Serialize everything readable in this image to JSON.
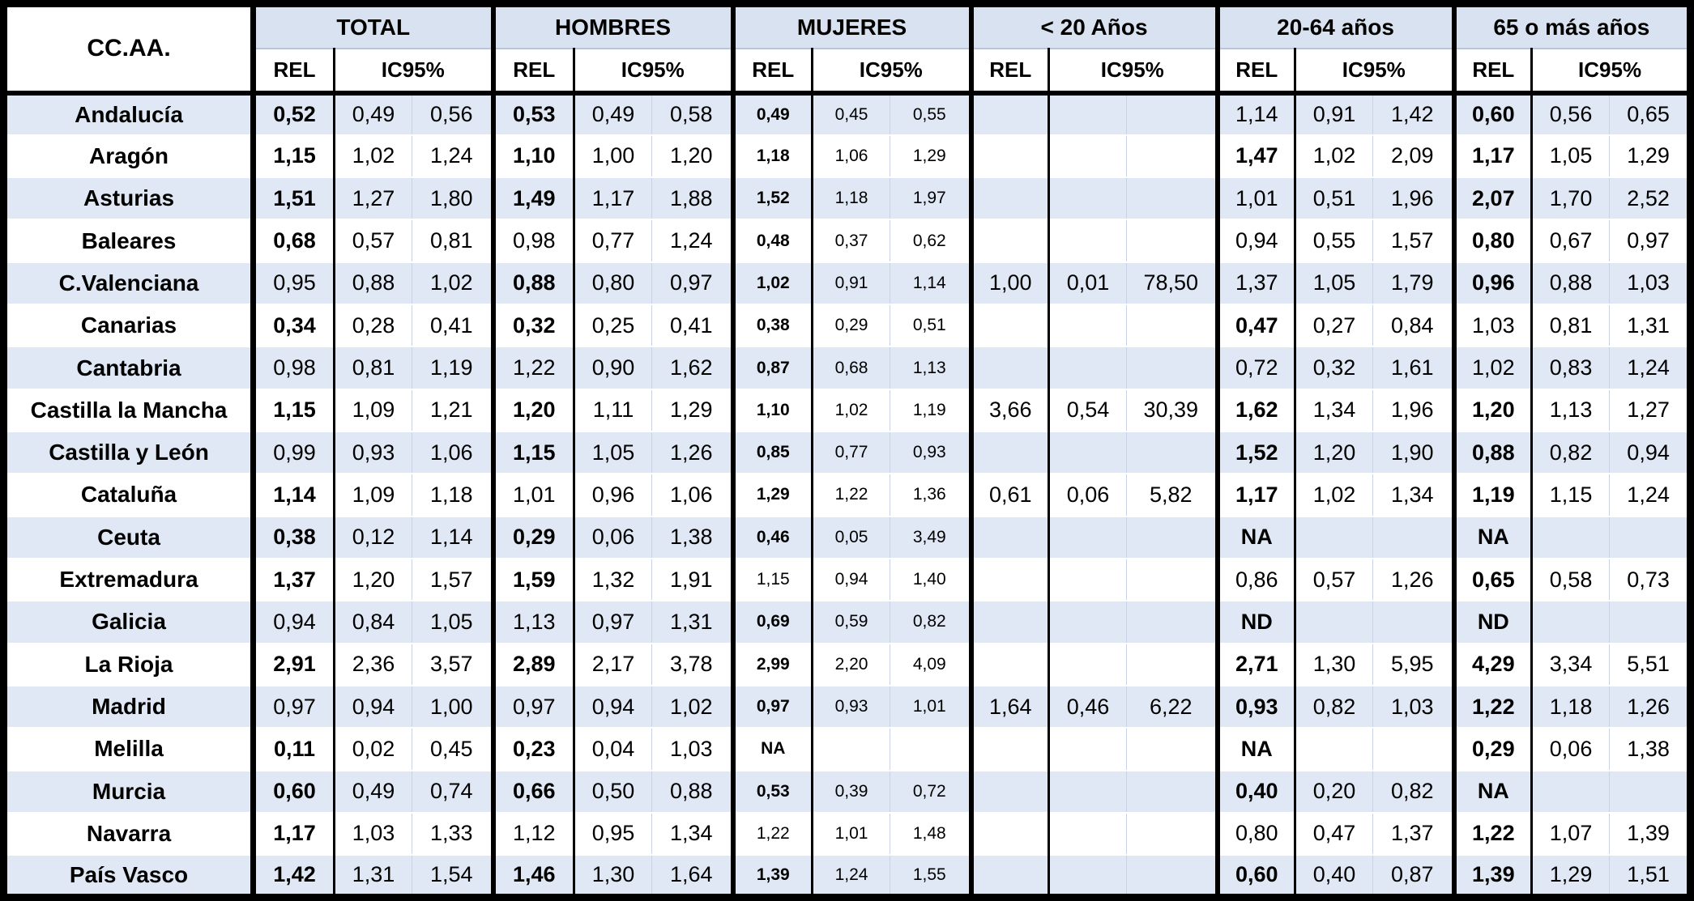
{
  "table": {
    "corner_label": "CC.AA.",
    "sub": {
      "rel": "REL",
      "ic": "IC95%"
    },
    "groups": [
      {
        "label": "TOTAL"
      },
      {
        "label": "HOMBRES"
      },
      {
        "label": "MUJERES"
      },
      {
        "label": "< 20 Años"
      },
      {
        "label": "20-64 años"
      },
      {
        "label": "65 o más años"
      }
    ],
    "colors": {
      "stripe": "#dfe8f4",
      "header_fill": "#d9e2f0",
      "border": "#000000",
      "light_divider": "#c8d2e2"
    },
    "rows": [
      {
        "region": "Andalucía",
        "alt": true,
        "groups": [
          {
            "rel": "0,52",
            "b": true,
            "lo": "0,49",
            "hi": "0,56"
          },
          {
            "rel": "0,53",
            "b": true,
            "lo": "0,49",
            "hi": "0,58"
          },
          {
            "rel": "0,49",
            "b": true,
            "lo": "0,45",
            "hi": "0,55"
          },
          {
            "rel": "",
            "b": false,
            "lo": "",
            "hi": ""
          },
          {
            "rel": "1,14",
            "b": false,
            "lo": "0,91",
            "hi": "1,42"
          },
          {
            "rel": "0,60",
            "b": true,
            "lo": "0,56",
            "hi": "0,65"
          }
        ]
      },
      {
        "region": "Aragón",
        "alt": false,
        "groups": [
          {
            "rel": "1,15",
            "b": true,
            "lo": "1,02",
            "hi": "1,24"
          },
          {
            "rel": "1,10",
            "b": true,
            "lo": "1,00",
            "hi": "1,20"
          },
          {
            "rel": "1,18",
            "b": true,
            "lo": "1,06",
            "hi": "1,29"
          },
          {
            "rel": "",
            "b": false,
            "lo": "",
            "hi": ""
          },
          {
            "rel": "1,47",
            "b": true,
            "lo": "1,02",
            "hi": "2,09"
          },
          {
            "rel": "1,17",
            "b": true,
            "lo": "1,05",
            "hi": "1,29"
          }
        ]
      },
      {
        "region": "Asturias",
        "alt": true,
        "groups": [
          {
            "rel": "1,51",
            "b": true,
            "lo": "1,27",
            "hi": "1,80"
          },
          {
            "rel": "1,49",
            "b": true,
            "lo": "1,17",
            "hi": "1,88"
          },
          {
            "rel": "1,52",
            "b": true,
            "lo": "1,18",
            "hi": "1,97"
          },
          {
            "rel": "",
            "b": false,
            "lo": "",
            "hi": ""
          },
          {
            "rel": "1,01",
            "b": false,
            "lo": "0,51",
            "hi": "1,96"
          },
          {
            "rel": "2,07",
            "b": true,
            "lo": "1,70",
            "hi": "2,52"
          }
        ]
      },
      {
        "region": "Baleares",
        "alt": false,
        "groups": [
          {
            "rel": "0,68",
            "b": true,
            "lo": "0,57",
            "hi": "0,81"
          },
          {
            "rel": "0,98",
            "b": false,
            "lo": "0,77",
            "hi": "1,24"
          },
          {
            "rel": "0,48",
            "b": true,
            "lo": "0,37",
            "hi": "0,62"
          },
          {
            "rel": "",
            "b": false,
            "lo": "",
            "hi": ""
          },
          {
            "rel": "0,94",
            "b": false,
            "lo": "0,55",
            "hi": "1,57"
          },
          {
            "rel": "0,80",
            "b": true,
            "lo": "0,67",
            "hi": "0,97"
          }
        ]
      },
      {
        "region": "C.Valenciana",
        "alt": true,
        "groups": [
          {
            "rel": "0,95",
            "b": false,
            "lo": "0,88",
            "hi": "1,02"
          },
          {
            "rel": "0,88",
            "b": true,
            "lo": "0,80",
            "hi": "0,97"
          },
          {
            "rel": "1,02",
            "b": true,
            "lo": "0,91",
            "hi": "1,14"
          },
          {
            "rel": "1,00",
            "b": false,
            "lo": "0,01",
            "hi": "78,50"
          },
          {
            "rel": "1,37",
            "b": false,
            "lo": "1,05",
            "hi": "1,79"
          },
          {
            "rel": "0,96",
            "b": true,
            "lo": "0,88",
            "hi": "1,03"
          }
        ]
      },
      {
        "region": "Canarias",
        "alt": false,
        "groups": [
          {
            "rel": "0,34",
            "b": true,
            "lo": "0,28",
            "hi": "0,41"
          },
          {
            "rel": "0,32",
            "b": true,
            "lo": "0,25",
            "hi": "0,41"
          },
          {
            "rel": "0,38",
            "b": true,
            "lo": "0,29",
            "hi": "0,51"
          },
          {
            "rel": "",
            "b": false,
            "lo": "",
            "hi": ""
          },
          {
            "rel": "0,47",
            "b": true,
            "lo": "0,27",
            "hi": "0,84"
          },
          {
            "rel": "1,03",
            "b": false,
            "lo": "0,81",
            "hi": "1,31"
          }
        ]
      },
      {
        "region": "Cantabria",
        "alt": true,
        "groups": [
          {
            "rel": "0,98",
            "b": false,
            "lo": "0,81",
            "hi": "1,19"
          },
          {
            "rel": "1,22",
            "b": false,
            "lo": "0,90",
            "hi": "1,62"
          },
          {
            "rel": "0,87",
            "b": true,
            "lo": "0,68",
            "hi": "1,13"
          },
          {
            "rel": "",
            "b": false,
            "lo": "",
            "hi": ""
          },
          {
            "rel": "0,72",
            "b": false,
            "lo": "0,32",
            "hi": "1,61"
          },
          {
            "rel": "1,02",
            "b": false,
            "lo": "0,83",
            "hi": "1,24"
          }
        ]
      },
      {
        "region": "Castilla la Mancha",
        "alt": false,
        "groups": [
          {
            "rel": "1,15",
            "b": true,
            "lo": "1,09",
            "hi": "1,21"
          },
          {
            "rel": "1,20",
            "b": true,
            "lo": "1,11",
            "hi": "1,29"
          },
          {
            "rel": "1,10",
            "b": true,
            "lo": "1,02",
            "hi": "1,19"
          },
          {
            "rel": "3,66",
            "b": false,
            "lo": "0,54",
            "hi": "30,39"
          },
          {
            "rel": "1,62",
            "b": true,
            "lo": "1,34",
            "hi": "1,96"
          },
          {
            "rel": "1,20",
            "b": true,
            "lo": "1,13",
            "hi": "1,27"
          }
        ]
      },
      {
        "region": "Castilla y  León",
        "alt": true,
        "groups": [
          {
            "rel": "0,99",
            "b": false,
            "lo": "0,93",
            "hi": "1,06"
          },
          {
            "rel": "1,15",
            "b": true,
            "lo": "1,05",
            "hi": "1,26"
          },
          {
            "rel": "0,85",
            "b": true,
            "lo": "0,77",
            "hi": "0,93"
          },
          {
            "rel": "",
            "b": false,
            "lo": "",
            "hi": ""
          },
          {
            "rel": "1,52",
            "b": true,
            "lo": "1,20",
            "hi": "1,90"
          },
          {
            "rel": "0,88",
            "b": true,
            "lo": "0,82",
            "hi": "0,94"
          }
        ]
      },
      {
        "region": "Cataluña",
        "alt": false,
        "groups": [
          {
            "rel": "1,14",
            "b": true,
            "lo": "1,09",
            "hi": "1,18"
          },
          {
            "rel": "1,01",
            "b": false,
            "lo": "0,96",
            "hi": "1,06"
          },
          {
            "rel": "1,29",
            "b": true,
            "lo": "1,22",
            "hi": "1,36"
          },
          {
            "rel": "0,61",
            "b": false,
            "lo": "0,06",
            "hi": "5,82"
          },
          {
            "rel": "1,17",
            "b": true,
            "lo": "1,02",
            "hi": "1,34"
          },
          {
            "rel": "1,19",
            "b": true,
            "lo": "1,15",
            "hi": "1,24"
          }
        ]
      },
      {
        "region": "Ceuta",
        "alt": true,
        "groups": [
          {
            "rel": "0,38",
            "b": true,
            "lo": "0,12",
            "hi": "1,14"
          },
          {
            "rel": "0,29",
            "b": true,
            "lo": "0,06",
            "hi": "1,38"
          },
          {
            "rel": "0,46",
            "b": true,
            "lo": "0,05",
            "hi": "3,49"
          },
          {
            "rel": "",
            "b": false,
            "lo": "",
            "hi": ""
          },
          {
            "rel": "NA",
            "b": true,
            "lo": "",
            "hi": ""
          },
          {
            "rel": "NA",
            "b": true,
            "lo": "",
            "hi": ""
          }
        ]
      },
      {
        "region": "Extremadura",
        "alt": false,
        "groups": [
          {
            "rel": "1,37",
            "b": true,
            "lo": "1,20",
            "hi": "1,57"
          },
          {
            "rel": "1,59",
            "b": true,
            "lo": "1,32",
            "hi": "1,91"
          },
          {
            "rel": "1,15",
            "b": false,
            "lo": "0,94",
            "hi": "1,40"
          },
          {
            "rel": "",
            "b": false,
            "lo": "",
            "hi": ""
          },
          {
            "rel": "0,86",
            "b": false,
            "lo": "0,57",
            "hi": "1,26"
          },
          {
            "rel": "0,65",
            "b": true,
            "lo": "0,58",
            "hi": "0,73"
          }
        ]
      },
      {
        "region": "Galicia",
        "alt": true,
        "groups": [
          {
            "rel": "0,94",
            "b": false,
            "lo": "0,84",
            "hi": "1,05"
          },
          {
            "rel": "1,13",
            "b": false,
            "lo": "0,97",
            "hi": "1,31"
          },
          {
            "rel": "0,69",
            "b": true,
            "lo": "0,59",
            "hi": "0,82"
          },
          {
            "rel": "",
            "b": false,
            "lo": "",
            "hi": ""
          },
          {
            "rel": "ND",
            "b": true,
            "lo": "",
            "hi": ""
          },
          {
            "rel": "ND",
            "b": true,
            "lo": "",
            "hi": ""
          }
        ]
      },
      {
        "region": "La Rioja",
        "alt": false,
        "groups": [
          {
            "rel": "2,91",
            "b": true,
            "lo": "2,36",
            "hi": "3,57"
          },
          {
            "rel": "2,89",
            "b": true,
            "lo": "2,17",
            "hi": "3,78"
          },
          {
            "rel": "2,99",
            "b": true,
            "lo": "2,20",
            "hi": "4,09"
          },
          {
            "rel": "",
            "b": false,
            "lo": "",
            "hi": ""
          },
          {
            "rel": "2,71",
            "b": true,
            "lo": "1,30",
            "hi": "5,95"
          },
          {
            "rel": "4,29",
            "b": true,
            "lo": "3,34",
            "hi": "5,51"
          }
        ]
      },
      {
        "region": "Madrid",
        "alt": true,
        "groups": [
          {
            "rel": "0,97",
            "b": false,
            "lo": "0,94",
            "hi": "1,00"
          },
          {
            "rel": "0,97",
            "b": false,
            "lo": "0,94",
            "hi": "1,02"
          },
          {
            "rel": "0,97",
            "b": true,
            "lo": "0,93",
            "hi": "1,01"
          },
          {
            "rel": "1,64",
            "b": false,
            "lo": "0,46",
            "hi": "6,22"
          },
          {
            "rel": "0,93",
            "b": true,
            "lo": "0,82",
            "hi": "1,03"
          },
          {
            "rel": "1,22",
            "b": true,
            "lo": "1,18",
            "hi": "1,26"
          }
        ]
      },
      {
        "region": "Melilla",
        "alt": false,
        "groups": [
          {
            "rel": "0,11",
            "b": true,
            "lo": "0,02",
            "hi": "0,45"
          },
          {
            "rel": "0,23",
            "b": true,
            "lo": "0,04",
            "hi": "1,03"
          },
          {
            "rel": "NA",
            "b": true,
            "lo": "",
            "hi": ""
          },
          {
            "rel": "",
            "b": false,
            "lo": "",
            "hi": ""
          },
          {
            "rel": "NA",
            "b": true,
            "lo": "",
            "hi": ""
          },
          {
            "rel": "0,29",
            "b": true,
            "lo": "0,06",
            "hi": "1,38"
          }
        ]
      },
      {
        "region": "Murcia",
        "alt": true,
        "groups": [
          {
            "rel": "0,60",
            "b": true,
            "lo": "0,49",
            "hi": "0,74"
          },
          {
            "rel": "0,66",
            "b": true,
            "lo": "0,50",
            "hi": "0,88"
          },
          {
            "rel": "0,53",
            "b": true,
            "lo": "0,39",
            "hi": "0,72"
          },
          {
            "rel": "",
            "b": false,
            "lo": "",
            "hi": ""
          },
          {
            "rel": "0,40",
            "b": true,
            "lo": "0,20",
            "hi": "0,82"
          },
          {
            "rel": "NA",
            "b": true,
            "lo": "",
            "hi": ""
          }
        ]
      },
      {
        "region": "Navarra",
        "alt": false,
        "groups": [
          {
            "rel": "1,17",
            "b": true,
            "lo": "1,03",
            "hi": "1,33"
          },
          {
            "rel": "1,12",
            "b": false,
            "lo": "0,95",
            "hi": "1,34"
          },
          {
            "rel": "1,22",
            "b": false,
            "lo": "1,01",
            "hi": "1,48"
          },
          {
            "rel": "",
            "b": false,
            "lo": "",
            "hi": ""
          },
          {
            "rel": "0,80",
            "b": false,
            "lo": "0,47",
            "hi": "1,37"
          },
          {
            "rel": "1,22",
            "b": true,
            "lo": "1,07",
            "hi": "1,39"
          }
        ]
      },
      {
        "region": "País Vasco",
        "alt": true,
        "groups": [
          {
            "rel": "1,42",
            "b": true,
            "lo": "1,31",
            "hi": "1,54"
          },
          {
            "rel": "1,46",
            "b": true,
            "lo": "1,30",
            "hi": "1,64"
          },
          {
            "rel": "1,39",
            "b": true,
            "lo": "1,24",
            "hi": "1,55"
          },
          {
            "rel": "",
            "b": false,
            "lo": "",
            "hi": ""
          },
          {
            "rel": "0,60",
            "b": true,
            "lo": "0,40",
            "hi": "0,87"
          },
          {
            "rel": "1,39",
            "b": true,
            "lo": "1,29",
            "hi": "1,51"
          }
        ]
      }
    ]
  }
}
